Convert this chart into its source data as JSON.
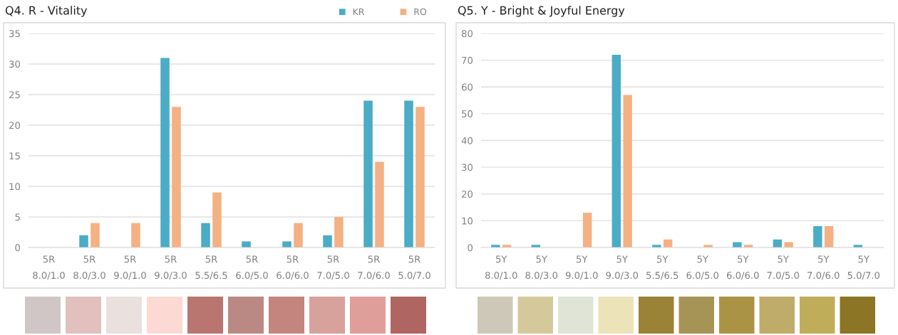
{
  "chart_data": [
    {
      "type": "bar",
      "title": "Q4. R - Vitality",
      "categories": [
        "5R\n8.0/1.0",
        "5R\n8.0/3.0",
        "5R\n9.0/1.0",
        "5R\n9.0/3.0",
        "5R\n5.5/6.5",
        "5R\n6.0/5.0",
        "5R\n6.0/6.0",
        "5R\n7.0/5.0",
        "5R\n7.0/6.0",
        "5R\n5.0/7.0"
      ],
      "series": [
        {
          "name": "KR",
          "color": "#4bacc6",
          "values": [
            0,
            2,
            0,
            31,
            4,
            1,
            1,
            2,
            24,
            24
          ]
        },
        {
          "name": "RO",
          "color": "#f4b183",
          "values": [
            0,
            4,
            4,
            23,
            9,
            0,
            4,
            5,
            14,
            23
          ]
        }
      ],
      "ylim": [
        0,
        35
      ],
      "yticks": [
        0,
        5,
        10,
        15,
        20,
        25,
        30,
        35
      ],
      "grid": "y",
      "legend": "top right"
    },
    {
      "type": "bar",
      "title": "Q5. Y - Bright & Joyful Energy",
      "categories": [
        "5Y\n8.0/1.0",
        "5Y\n8.0/3.0",
        "5Y\n9.0/1.0",
        "5Y\n9.0/3.0",
        "5Y\n5.5/6.5",
        "5Y\n6.0/5.0",
        "5Y\n6.0/6.0",
        "5Y\n7.0/5.0",
        "5Y\n7.0/6.0",
        "5Y\n5.0/7.0"
      ],
      "series": [
        {
          "color": "#4bacc6",
          "values": [
            1,
            1,
            0,
            72,
            1,
            0,
            2,
            3,
            8,
            1
          ]
        },
        {
          "color": "#f4b183",
          "values": [
            1,
            0,
            13,
            57,
            3,
            1,
            1,
            2,
            8,
            0
          ]
        }
      ],
      "ylim": [
        0,
        80
      ],
      "yticks": [
        0,
        10,
        20,
        30,
        40,
        50,
        60,
        70,
        80
      ],
      "grid": "y"
    }
  ]
}
